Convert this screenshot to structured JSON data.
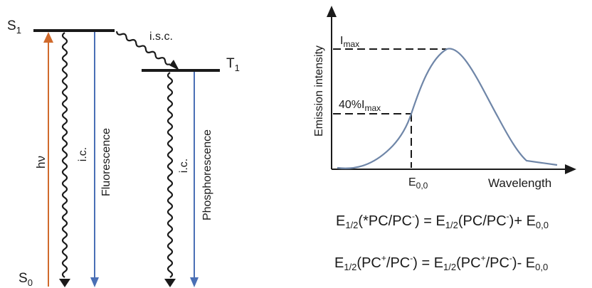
{
  "jablonski": {
    "s1_main": "S",
    "s1_sub": "1",
    "s0_main": "S",
    "s0_sub": "0",
    "t1_main": "T",
    "t1_sub": "1",
    "hv": "hν",
    "ic_1": "i.c.",
    "ic_2": "i.c.",
    "isc": "i.s.c.",
    "fluorescence": "Fluorescence",
    "phosphorescence": "Phosphorescence"
  },
  "emission_plot": {
    "ylabel": "Emission intensity",
    "xlabel": "Wavelength",
    "imax_main": "I",
    "imax_sub": "max",
    "forty_main": "40%I",
    "forty_sub": "max",
    "e00_main": "E",
    "e00_sub": "0,0"
  },
  "equations": {
    "eq1": {
      "p1": "E",
      "p1_sub": "1/2",
      "p2": "(*PC/PC",
      "p2_sup": "-",
      "p3": ") = E",
      "p3_sub": "1/2",
      "p4": "(PC/PC",
      "p4_sup": "-",
      "p5": ")+ E",
      "p5_sub": "0,0"
    },
    "eq2": {
      "p1": "E",
      "p1_sub": "1/2",
      "p2": "(PC",
      "p2_sup": "+",
      "p3": "/PC",
      "p3_sup": "-",
      "p4": ") = E",
      "p4_sub": "1/2",
      "p5": "(PC",
      "p5_sup": "+",
      "p6": "/PC",
      "p6_sup": "-",
      "p7": ")- E",
      "p7_sub": "0,0"
    }
  },
  "colors": {
    "absorption": "#d06a2c",
    "radiative": "#4a6fb5",
    "curve": "#6f86a8",
    "ink": "#1a1a1a"
  }
}
